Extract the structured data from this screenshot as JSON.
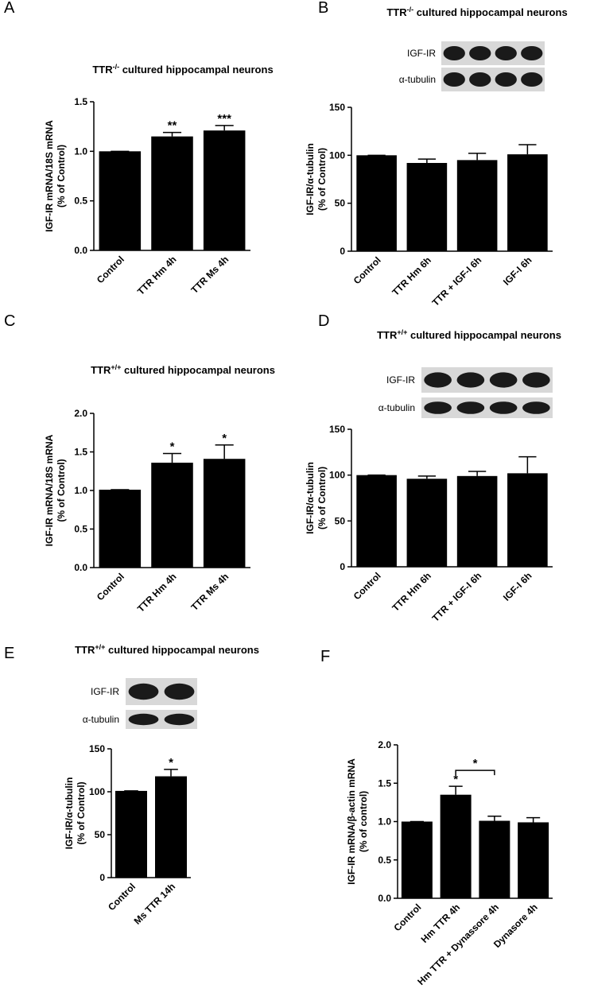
{
  "chart_data": [
    {
      "type": "bar",
      "panel": "A",
      "title_parts": [
        "TTR",
        "-/-",
        " cultured hippocampal neurons"
      ],
      "ylabel": [
        "IGF-IR mRNA/18S mRNA",
        "(% of Control)"
      ],
      "categories": [
        "Control",
        "TTR Hm 4h",
        "TTR Ms 4h"
      ],
      "values": [
        1.0,
        1.15,
        1.21
      ],
      "errors": [
        0,
        0.04,
        0.05
      ],
      "annotations": [
        null,
        "**",
        "***"
      ],
      "color": "#000000",
      "ylim": [
        0,
        1.5
      ],
      "yticks": [
        {
          "value": 0,
          "label": "0.0"
        },
        {
          "value": 0.5,
          "label": "0.5"
        },
        {
          "value": 1,
          "label": "1.0"
        },
        {
          "value": 1.5,
          "label": "1.5"
        }
      ]
    },
    {
      "type": "bar",
      "panel": "B",
      "title_parts": [
        "TTR",
        "-/-",
        " cultured hippocampal neurons"
      ],
      "blot_labels": [
        "IGF-IR",
        "α-tubulin"
      ],
      "ylabel": [
        "IGF-IR/α-tubulin",
        "(% of Control)"
      ],
      "categories": [
        "Control",
        "TTR Hm 6h",
        "TTR + IGF-I 6h",
        "IGF-I 6h"
      ],
      "values": [
        100,
        92,
        95,
        101
      ],
      "errors": [
        0,
        4,
        7,
        10
      ],
      "color": "#000000",
      "ylim": [
        0,
        150
      ],
      "yticks": [
        0,
        50,
        100,
        150
      ]
    },
    {
      "type": "bar",
      "panel": "C",
      "title_parts": [
        "TTR",
        "+/+",
        " cultured hippocampal neurons"
      ],
      "ylabel": [
        "IGF-IR mRNA/18S mRNA",
        "(% of Control)"
      ],
      "categories": [
        "Control",
        "TTR Hm 4h",
        "TTR Ms 4h"
      ],
      "values": [
        1.01,
        1.36,
        1.41
      ],
      "errors": [
        0,
        0.12,
        0.18
      ],
      "annotations": [
        null,
        "*",
        "*"
      ],
      "color": "#000000",
      "ylim": [
        0,
        2
      ],
      "yticks": [
        {
          "value": 0,
          "label": "0.0"
        },
        {
          "value": 0.5,
          "label": "0.5"
        },
        {
          "value": 1,
          "label": "1.0"
        },
        {
          "value": 1.5,
          "label": "1.5"
        },
        {
          "value": 2,
          "label": "2.0"
        }
      ]
    },
    {
      "type": "bar",
      "panel": "D",
      "title_parts": [
        "TTR",
        "+/+",
        " cultured hippocampal neurons"
      ],
      "blot_labels": [
        "IGF-IR",
        "α-tubulin"
      ],
      "ylabel": [
        "IGF-IR/α-tubulin",
        "(% of Control)"
      ],
      "categories": [
        "Control",
        "TTR Hm 6h",
        "TTR + IGF-I 6h",
        "IGF-I 6h"
      ],
      "values": [
        100,
        96,
        99,
        102
      ],
      "errors": [
        0,
        3,
        5,
        18
      ],
      "color": "#000000",
      "ylim": [
        0,
        150
      ],
      "yticks": [
        0,
        50,
        100,
        150
      ]
    },
    {
      "type": "bar",
      "panel": "E",
      "title_parts": [
        "TTR",
        "+/+",
        " cultured hippocampal neurons"
      ],
      "blot_labels": [
        "IGF-IR",
        "α-tubulin"
      ],
      "ylabel": [
        "IGF-IR/α-tubulin",
        "(% of Control)"
      ],
      "categories": [
        "Control",
        "Ms TTR 14h"
      ],
      "values": [
        101,
        118
      ],
      "errors": [
        0,
        8
      ],
      "annotations": [
        null,
        "*"
      ],
      "color": "#000000",
      "ylim": [
        0,
        150
      ],
      "yticks": [
        0,
        50,
        100,
        150
      ]
    },
    {
      "type": "bar",
      "panel": "F",
      "ylabel": [
        "IGF-IR mRNA/β-actin mRNA",
        "(% of control)"
      ],
      "categories": [
        "Control",
        "Hm TTR 4h",
        "Hm TTR + Dynassore 4h",
        "Dynasore 4h"
      ],
      "values": [
        1.0,
        1.35,
        1.01,
        0.99
      ],
      "errors": [
        0,
        0.11,
        0.06,
        0.06
      ],
      "annotations": [
        null,
        "*",
        null,
        null
      ],
      "bracket_label": "*",
      "color": "#000000",
      "ylim": [
        0,
        2
      ],
      "yticks": [
        {
          "value": 0,
          "label": "0.0"
        },
        {
          "value": 0.5,
          "label": "0.5"
        },
        {
          "value": 1,
          "label": "1.0"
        },
        {
          "value": 1.5,
          "label": "1.5"
        },
        {
          "value": 2,
          "label": "2.0"
        }
      ]
    }
  ]
}
